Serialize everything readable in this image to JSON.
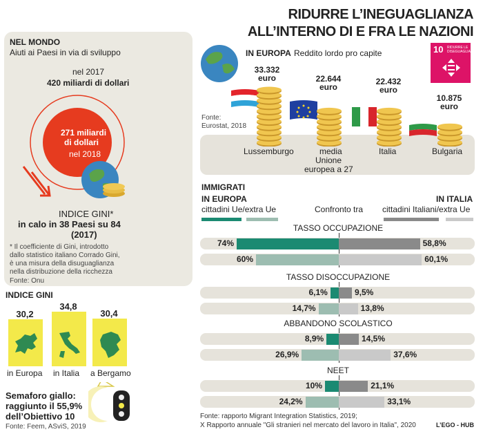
{
  "title": {
    "line1": "RIDURRE L’INEGUAGLIANZA",
    "line2": "ALL’INTERNO DI E FRA LE NAZIONI"
  },
  "left": {
    "nel_mondo": "NEL MONDO",
    "aiuti": "Aiuti ai Paesi in via di sviluppo",
    "nel2017": "nel 2017",
    "val2017": "420 miliardi di dollari",
    "val2018_a": "271 miliardi",
    "val2018_b": "di dollari",
    "val2018_c": "nel 2018",
    "gini_title": "INDICE GINI*",
    "gini_calo_a": "in calo in 38 Paesi su 84",
    "gini_calo_b": "(2017)",
    "note_a": "* Il coefficiente di Gini, introdotto",
    "note_b": "dallo statistico italiano Corrado Gini,",
    "note_c": "è una misura della disuguaglianza",
    "note_d": "nella distribuzione della ricchezza",
    "fonte": "Fonte: Onu"
  },
  "gini": {
    "title": "INDICE GINI",
    "items": [
      {
        "value": "30,2",
        "label": "in Europa",
        "num": 30.2
      },
      {
        "value": "34,8",
        "label": "in Italia",
        "num": 34.8
      },
      {
        "value": "30,4",
        "label": "a Bergamo",
        "num": 30.4
      }
    ],
    "semaforo_a": "Semaforo giallo:",
    "semaforo_b": "raggiunto il 55,9%",
    "semaforo_c": "dell’Obiettivo 10",
    "fonte": "Fonte: Feem, ASviS, 2019"
  },
  "europe": {
    "heading": "IN EUROPA",
    "subheading": "Reddito lordo pro capite",
    "fonte_a": "Fonte:",
    "fonte_b": "Eurostat, 2018",
    "sdg_num": "10",
    "sdg_text_a": "RIDURRE LE",
    "sdg_text_b": "DISEGUAGLIANZE",
    "countries": [
      {
        "value": "33.332",
        "unit": "euro",
        "label": "Lussemburgo",
        "num": 33332
      },
      {
        "value": "22.644",
        "unit": "euro",
        "label_a": "media",
        "label_b": "Unione",
        "label_c": "europea a 27",
        "num": 22644
      },
      {
        "value": "22.432",
        "unit": "euro",
        "label": "Italia",
        "num": 22432
      },
      {
        "value": "10.875",
        "unit": "euro",
        "label": "Bulgaria",
        "num": 10875
      }
    ]
  },
  "immigrati": {
    "heading": "IMMIGRATI",
    "in_europa": "IN EUROPA",
    "in_italia": "IN ITALIA",
    "legend_left": "cittadini Ue/extra Ue",
    "legend_center": "Confronto tra",
    "legend_right": "cittadini Italiani/extra Ue",
    "sections": [
      {
        "title": "TASSO OCCUPAZIONE",
        "rows": [
          {
            "left": "74%",
            "right": "58,8%",
            "lv": 74,
            "rv": 58.8
          },
          {
            "left": "60%",
            "right": "60,1%",
            "lv": 60,
            "rv": 60.1
          }
        ]
      },
      {
        "title": "TASSO DISOCCUPAZIONE",
        "rows": [
          {
            "left": "6,1%",
            "right": "9,5%",
            "lv": 6.1,
            "rv": 9.5
          },
          {
            "left": "14,7%",
            "right": "13,8%",
            "lv": 14.7,
            "rv": 13.8
          }
        ]
      },
      {
        "title": "ABBANDONO SCOLASTICO",
        "rows": [
          {
            "left": "8,9%",
            "right": "14,5%",
            "lv": 8.9,
            "rv": 14.5
          },
          {
            "left": "26,9%",
            "right": "37,6%",
            "lv": 26.9,
            "rv": 37.6
          }
        ]
      },
      {
        "title": "NEET",
        "rows": [
          {
            "left": "10%",
            "right": "21,1%",
            "lv": 10,
            "rv": 21.1
          },
          {
            "left": "24,2%",
            "right": "33,1%",
            "lv": 24.2,
            "rv": 33.1
          }
        ]
      }
    ],
    "fonte_a": "Fonte: rapporto Migrant Integration Statistics, 2019;",
    "fonte_b": "X Rapporto annuale \"Gli stranieri nel mercato del lavoro in Italia\", 2020",
    "credit": "L’EGO - HUB"
  },
  "colors": {
    "teal_dark": "#1b8a72",
    "teal_light": "#9dbdb1",
    "gray_dark": "#8a8a8a",
    "gray_light": "#c9c9c9",
    "red": "#e63b1f",
    "yellow": "#f3e94a",
    "sdg": "#dd1367"
  }
}
